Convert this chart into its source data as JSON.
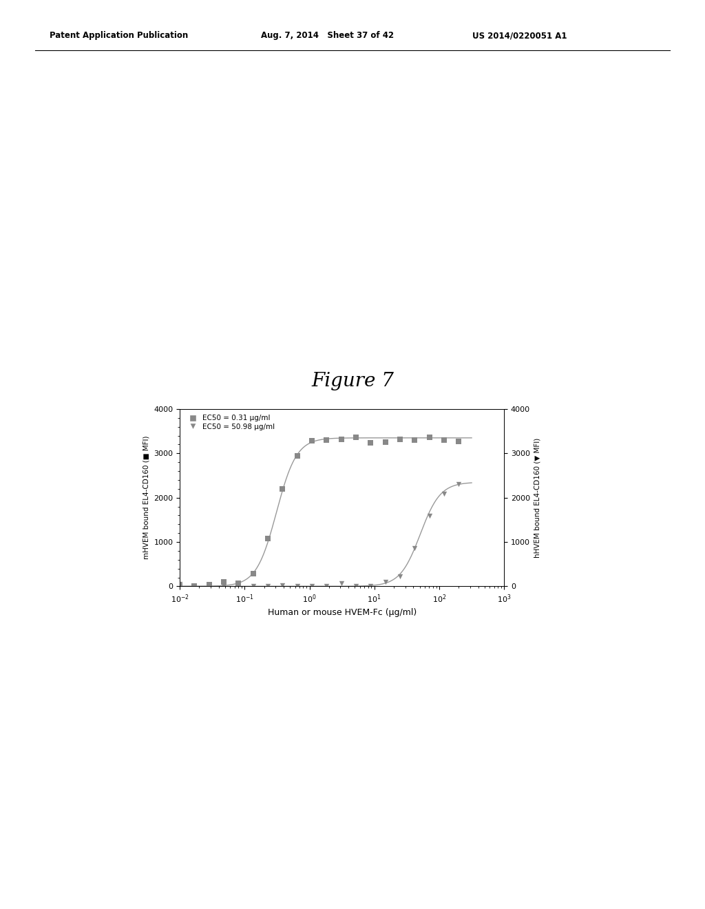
{
  "figure_title": "Figure 7",
  "header_left": "Patent Application Publication",
  "header_mid": "Aug. 7, 2014   Sheet 37 of 42",
  "header_right": "US 2014/0220051 A1",
  "xlabel": "Human or mouse HVEM-Fc (μg/ml)",
  "ylabel_left": "mHVEM bound EL4-CD160 (■ MFI)",
  "ylabel_right": "hHVEM bound EL4-CD160 (▼ MFI)",
  "legend_square": "EC50 = 0.31 μg/ml",
  "legend_triangle": "EC50 = 50.98 μg/ml",
  "ylim": [
    0,
    4000
  ],
  "yticks": [
    0,
    1000,
    2000,
    3000,
    4000
  ],
  "color_line": "#999999",
  "color_marker": "#888888",
  "background_color": "#ffffff",
  "ec50_square": 0.31,
  "ec50_triangle": 50.98,
  "hill_square": 2.8,
  "hill_triangle": 2.8,
  "max_square": 3350,
  "max_triangle": 2350,
  "min_square": 0,
  "min_triangle": 0,
  "noise_seed": 42
}
